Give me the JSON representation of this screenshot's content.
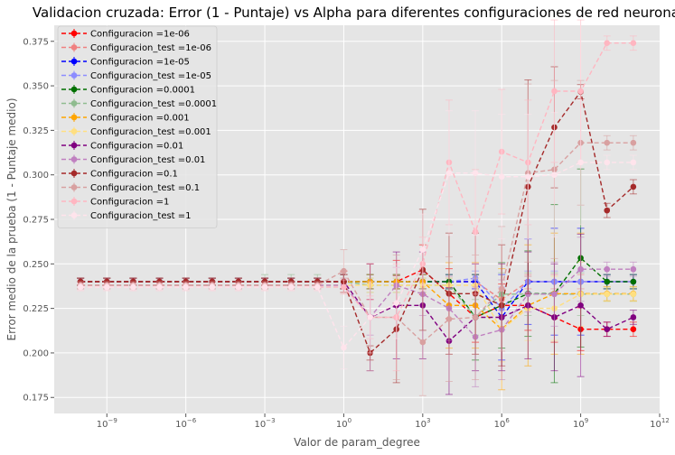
{
  "chart_data": {
    "type": "line",
    "title": "Validacion cruzada: Error (1 - Puntaje) vs Alpha para diferentes configuraciones de red neuronal",
    "xlabel": "Valor de param_degree",
    "ylabel": "Error medio de la prueba (1 - Puntaje medio)",
    "xscale": "log",
    "xlim": [
      1e-11,
      1000000000000.0
    ],
    "ylim": [
      0.166,
      0.384
    ],
    "grid": true,
    "legend_position": "upper-left",
    "xticks": [
      {
        "base": "10",
        "exp": "−9",
        "value": 1e-09
      },
      {
        "base": "10",
        "exp": "−6",
        "value": 1e-06
      },
      {
        "base": "10",
        "exp": "−3",
        "value": 0.001
      },
      {
        "base": "10",
        "exp": "0",
        "value": 1
      },
      {
        "base": "10",
        "exp": "3",
        "value": 1000.0
      },
      {
        "base": "10",
        "exp": "6",
        "value": 1000000.0
      },
      {
        "base": "10",
        "exp": "9",
        "value": 1000000000.0
      },
      {
        "base": "10",
        "exp": "12",
        "value": 1000000000000.0
      }
    ],
    "yticks": [
      "0.175",
      "0.200",
      "0.225",
      "0.250",
      "0.275",
      "0.300",
      "0.325",
      "0.350",
      "0.375"
    ],
    "x": [
      1e-10,
      1e-09,
      1e-08,
      1e-07,
      1e-06,
      1e-05,
      0.0001,
      0.001,
      0.01,
      0.1,
      1,
      10,
      100,
      1000,
      10000,
      100000,
      1000000,
      10000000,
      100000000,
      1000000000,
      10000000000,
      100000000000
    ],
    "series": [
      {
        "name": "Configuracion =1e-06",
        "color": "#ff0000",
        "dashed": true,
        "x_start": 0,
        "values": [
          0.24,
          0.24,
          0.24,
          0.24,
          0.24,
          0.24,
          0.24,
          0.24,
          0.24,
          0.24,
          0.24,
          0.24,
          0.24,
          0.2467,
          0.2333,
          0.22,
          0.2267,
          0.2267,
          0.22,
          0.2133,
          0.2133,
          0.2133
        ],
        "err": [
          0.002,
          0.002,
          0.002,
          0.002,
          0.002,
          0.002,
          0.002,
          0.002,
          0.002,
          0.002,
          0.006,
          0.01,
          0.012,
          0.014,
          0.014,
          0.014,
          0.012,
          0.014,
          0.014,
          0.012,
          0.004,
          0.004
        ]
      },
      {
        "name": "Configuracion_test =1e-06",
        "color": "#f08080",
        "dashed": true,
        "x_start": 0,
        "values": [
          0.24,
          0.24,
          0.24,
          0.24,
          0.24,
          0.24,
          0.24,
          0.24,
          0.24,
          0.24,
          0.24,
          0.24,
          0.24,
          0.24,
          0.24,
          0.24,
          0.23,
          0.24,
          0.24,
          0.24,
          0.24,
          0.24
        ],
        "err": [
          0.002,
          0.002,
          0.002,
          0.002,
          0.002,
          0.002,
          0.002,
          0.002,
          0.002,
          0.002,
          0.004,
          0.004,
          0.004,
          0.004,
          0.004,
          0.004,
          0.006,
          0.004,
          0.004,
          0.004,
          0.004,
          0.004
        ]
      },
      {
        "name": "Configuracion =1e-05",
        "color": "#0000ff",
        "dashed": true,
        "x_start": 0,
        "values": [
          0.24,
          0.24,
          0.24,
          0.24,
          0.24,
          0.24,
          0.24,
          0.24,
          0.24,
          0.24,
          0.24,
          0.24,
          0.24,
          0.24,
          0.24,
          0.24,
          0.22,
          0.24,
          0.24,
          0.24,
          0.24,
          0.24
        ],
        "err": [
          0.002,
          0.002,
          0.002,
          0.002,
          0.002,
          0.002,
          0.002,
          0.002,
          0.002,
          0.002,
          0.004,
          0.004,
          0.004,
          0.004,
          0.004,
          0.004,
          0.024,
          0.024,
          0.03,
          0.03,
          0.004,
          0.004
        ]
      },
      {
        "name": "Configuracion_test =1e-05",
        "color": "#8c8cff",
        "dashed": true,
        "x_start": 0,
        "values": [
          0.24,
          0.24,
          0.24,
          0.24,
          0.24,
          0.24,
          0.24,
          0.24,
          0.24,
          0.24,
          0.24,
          0.24,
          0.24,
          0.24,
          0.24,
          0.242,
          0.225,
          0.24,
          0.24,
          0.24,
          0.24,
          0.24
        ],
        "err": [
          0.002,
          0.002,
          0.002,
          0.002,
          0.002,
          0.002,
          0.002,
          0.002,
          0.002,
          0.002,
          0.004,
          0.004,
          0.004,
          0.004,
          0.004,
          0.004,
          0.012,
          0.006,
          0.006,
          0.006,
          0.004,
          0.004
        ]
      },
      {
        "name": "Configuracion =0.0001",
        "color": "#007000",
        "dashed": true,
        "x_start": 0,
        "values": [
          0.24,
          0.24,
          0.24,
          0.24,
          0.24,
          0.24,
          0.24,
          0.24,
          0.24,
          0.24,
          0.24,
          0.24,
          0.24,
          0.24,
          0.24,
          0.22,
          0.2267,
          0.2333,
          0.2333,
          0.2533,
          0.24,
          0.24
        ],
        "err": [
          0.002,
          0.002,
          0.002,
          0.002,
          0.002,
          0.002,
          0.002,
          0.002,
          0.002,
          0.002,
          0.004,
          0.004,
          0.004,
          0.004,
          0.004,
          0.024,
          0.024,
          0.024,
          0.05,
          0.05,
          0.004,
          0.004
        ]
      },
      {
        "name": "Configuracion_test =0.0001",
        "color": "#8fbc8f",
        "dashed": true,
        "x_start": 0,
        "values": [
          0.24,
          0.24,
          0.24,
          0.24,
          0.24,
          0.24,
          0.24,
          0.24,
          0.24,
          0.24,
          0.24,
          0.238,
          0.238,
          0.238,
          0.238,
          0.22,
          0.233,
          0.233,
          0.233,
          0.233,
          0.233,
          0.233
        ],
        "err": [
          0.002,
          0.002,
          0.002,
          0.002,
          0.002,
          0.002,
          0.002,
          0.004,
          0.004,
          0.004,
          0.004,
          0.004,
          0.004,
          0.004,
          0.004,
          0.01,
          0.012,
          0.012,
          0.012,
          0.012,
          0.004,
          0.004
        ]
      },
      {
        "name": "Configuracion =0.001",
        "color": "#ffa500",
        "dashed": true,
        "x_start": 0,
        "values": [
          0.24,
          0.24,
          0.24,
          0.24,
          0.24,
          0.24,
          0.24,
          0.24,
          0.24,
          0.24,
          0.24,
          0.24,
          0.24,
          0.24,
          0.2267,
          0.2267,
          0.2133,
          0.2267,
          0.2333,
          0.2333,
          0.2333,
          0.2333
        ],
        "err": [
          0.002,
          0.002,
          0.002,
          0.002,
          0.002,
          0.002,
          0.002,
          0.002,
          0.002,
          0.002,
          0.004,
          0.004,
          0.004,
          0.004,
          0.024,
          0.024,
          0.034,
          0.034,
          0.034,
          0.034,
          0.004,
          0.004
        ]
      },
      {
        "name": "Configuracion_test =0.001",
        "color": "#ffdf80",
        "dashed": true,
        "x_start": 0,
        "values": [
          0.238,
          0.238,
          0.238,
          0.238,
          0.238,
          0.238,
          0.238,
          0.238,
          0.238,
          0.238,
          0.238,
          0.238,
          0.238,
          0.238,
          0.238,
          0.238,
          0.213,
          0.225,
          0.225,
          0.233,
          0.233,
          0.233
        ],
        "err": [
          0.002,
          0.002,
          0.002,
          0.002,
          0.002,
          0.002,
          0.002,
          0.002,
          0.002,
          0.002,
          0.004,
          0.004,
          0.004,
          0.004,
          0.004,
          0.004,
          0.018,
          0.018,
          0.018,
          0.018,
          0.004,
          0.004
        ]
      },
      {
        "name": "Configuracion =0.01",
        "color": "#800080",
        "dashed": true,
        "x_start": 0,
        "values": [
          0.24,
          0.24,
          0.24,
          0.24,
          0.24,
          0.24,
          0.24,
          0.24,
          0.24,
          0.24,
          0.24,
          0.22,
          0.2267,
          0.2267,
          0.2067,
          0.22,
          0.22,
          0.2267,
          0.22,
          0.2267,
          0.2133,
          0.22
        ],
        "err": [
          0.002,
          0.002,
          0.002,
          0.002,
          0.002,
          0.002,
          0.002,
          0.002,
          0.002,
          0.002,
          0.004,
          0.03,
          0.03,
          0.03,
          0.03,
          0.03,
          0.03,
          0.03,
          0.03,
          0.04,
          0.004,
          0.004
        ]
      },
      {
        "name": "Configuracion_test =0.01",
        "color": "#c080c0",
        "dashed": true,
        "x_start": 0,
        "values": [
          0.238,
          0.238,
          0.238,
          0.238,
          0.238,
          0.238,
          0.238,
          0.238,
          0.238,
          0.238,
          0.238,
          0.22,
          0.238,
          0.233,
          0.225,
          0.209,
          0.213,
          0.233,
          0.233,
          0.247,
          0.247,
          0.247
        ],
        "err": [
          0.002,
          0.002,
          0.002,
          0.002,
          0.002,
          0.002,
          0.002,
          0.002,
          0.002,
          0.002,
          0.004,
          0.01,
          0.01,
          0.012,
          0.018,
          0.028,
          0.028,
          0.01,
          0.018,
          0.018,
          0.004,
          0.004
        ]
      },
      {
        "name": "Configuracion =0.1",
        "color": "#a52a2a",
        "dashed": true,
        "x_start": 0,
        "values": [
          0.24,
          0.24,
          0.24,
          0.24,
          0.24,
          0.24,
          0.24,
          0.24,
          0.24,
          0.24,
          0.24,
          0.2,
          0.2133,
          0.2467,
          0.2333,
          0.2333,
          0.2267,
          0.2933,
          0.3267,
          0.3467,
          0.28,
          0.2933
        ],
        "err": [
          0.002,
          0.002,
          0.002,
          0.002,
          0.002,
          0.002,
          0.002,
          0.002,
          0.002,
          0.002,
          0.004,
          0.004,
          0.03,
          0.034,
          0.034,
          0.034,
          0.034,
          0.06,
          0.034,
          0.004,
          0.004,
          0.004
        ]
      },
      {
        "name": "Configuracion_test =0.1",
        "color": "#d8a0a0",
        "dashed": true,
        "x_start": 0,
        "values": [
          0.238,
          0.238,
          0.238,
          0.238,
          0.238,
          0.238,
          0.238,
          0.238,
          0.238,
          0.238,
          0.246,
          0.22,
          0.22,
          0.206,
          0.219,
          0.22,
          0.236,
          0.301,
          0.303,
          0.318,
          0.318,
          0.318
        ],
        "err": [
          0.002,
          0.002,
          0.002,
          0.002,
          0.002,
          0.002,
          0.002,
          0.002,
          0.002,
          0.002,
          0.012,
          0.03,
          0.035,
          0.03,
          0.035,
          0.035,
          0.035,
          0.05,
          0.05,
          0.035,
          0.004,
          0.004
        ]
      },
      {
        "name": "Configuracion =1",
        "color": "#ffb6c1",
        "dashed": true,
        "x_start": 0,
        "values": [
          0.237,
          0.237,
          0.237,
          0.237,
          0.237,
          0.237,
          0.237,
          0.237,
          0.237,
          0.237,
          0.237,
          0.22,
          0.22,
          0.25,
          0.307,
          0.268,
          0.313,
          0.307,
          0.347,
          0.347,
          0.374,
          0.374
        ],
        "err": [
          0.002,
          0.002,
          0.002,
          0.002,
          0.002,
          0.002,
          0.002,
          0.002,
          0.002,
          0.002,
          0.004,
          0.012,
          0.03,
          0.015,
          0.035,
          0.035,
          0.035,
          0.035,
          0.04,
          0.04,
          0.004,
          0.004
        ]
      },
      {
        "name": "Configuracion_test =1",
        "color": "#ffe4ec",
        "dashed": true,
        "x_start": 0,
        "values": [
          0.237,
          0.237,
          0.237,
          0.237,
          0.237,
          0.237,
          0.237,
          0.237,
          0.237,
          0.237,
          0.203,
          0.22,
          0.228,
          0.258,
          0.301,
          0.301,
          0.299,
          0.299,
          0.3,
          0.307,
          0.307,
          0.307
        ],
        "err": [
          0.002,
          0.002,
          0.002,
          0.002,
          0.002,
          0.002,
          0.002,
          0.002,
          0.002,
          0.002,
          0.012,
          0.02,
          0.02,
          0.02,
          0.035,
          0.035,
          0.035,
          0.035,
          0.035,
          0.035,
          0.004,
          0.004
        ]
      }
    ]
  }
}
